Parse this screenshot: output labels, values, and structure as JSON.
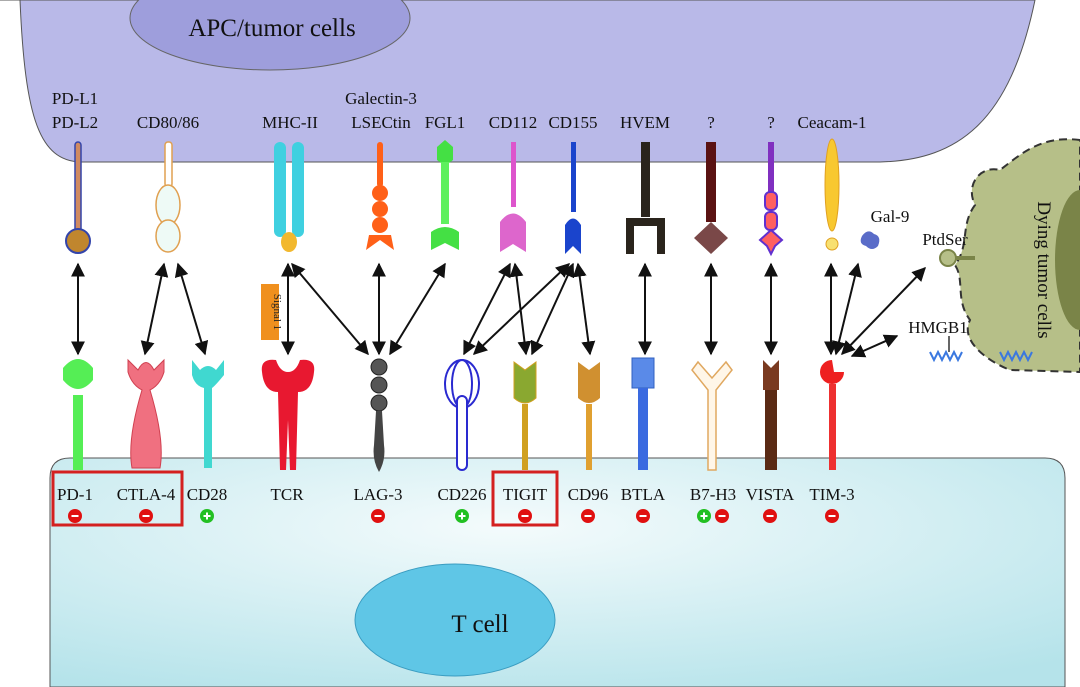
{
  "apc": {
    "title": "APC/tumor cells"
  },
  "tcell": {
    "title": "T cell"
  },
  "dying": {
    "title": "Dying tumor cells"
  },
  "signal": "Signal 1",
  "ligands": [
    {
      "line1": "PD-L1",
      "line2": "PD-L2"
    },
    {
      "line1": "",
      "line2": "CD80/86"
    },
    {
      "line1": "",
      "line2": "MHC-II"
    },
    {
      "line1": "Galectin-3",
      "line2": "LSECtin"
    },
    {
      "line1": "",
      "line2": "FGL1"
    },
    {
      "line1": "",
      "line2": "CD112"
    },
    {
      "line1": "",
      "line2": "CD155"
    },
    {
      "line1": "",
      "line2": "HVEM"
    },
    {
      "line1": "",
      "line2": "?"
    },
    {
      "line1": "",
      "line2": "?"
    },
    {
      "line1": "",
      "line2": "Ceacam-1"
    }
  ],
  "other_ligands": {
    "gal9": "Gal-9",
    "ptdser": "PtdSer",
    "hmgb1": "HMGB1"
  },
  "receptors": [
    {
      "label": "PD-1",
      "signs": [
        "-"
      ]
    },
    {
      "label": "CTLA-4",
      "signs": [
        "-"
      ]
    },
    {
      "label": "CD28",
      "signs": [
        "+"
      ]
    },
    {
      "label": "TCR",
      "signs": []
    },
    {
      "label": "LAG-3",
      "signs": [
        "-"
      ]
    },
    {
      "label": "CD226",
      "signs": [
        "+"
      ]
    },
    {
      "label": "TIGIT",
      "signs": [
        "-"
      ]
    },
    {
      "label": "CD96",
      "signs": [
        "-"
      ]
    },
    {
      "label": "BTLA",
      "signs": [
        "-"
      ]
    },
    {
      "label": "B7-H3",
      "signs": [
        "+",
        "-"
      ]
    },
    {
      "label": "VISTA",
      "signs": [
        "-"
      ]
    },
    {
      "label": "TIM-3",
      "signs": [
        "-"
      ]
    }
  ],
  "highlighted": [
    "PD-1",
    "CTLA-4",
    "TIGIT"
  ],
  "colors": {
    "apc": "#b9b9e8",
    "tcell": "#c2e9ef",
    "nucleus": "#5fc6e6",
    "dying": "#b6bf88",
    "inhibit": "#e01010",
    "activate": "#22c022",
    "highlight": "#d42020"
  }
}
